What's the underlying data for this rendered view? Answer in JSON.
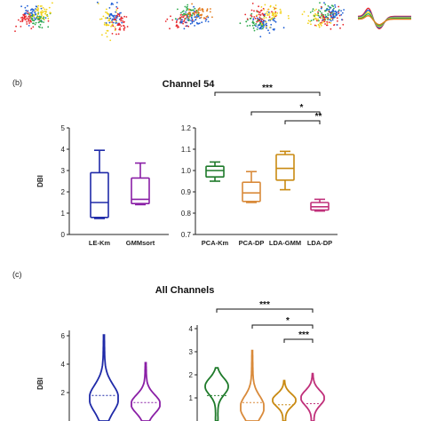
{
  "panels": {
    "b": {
      "label": "(b)",
      "title": "Channel 54"
    },
    "c": {
      "label": "(c)",
      "title": "All Channels"
    }
  },
  "chart_data": [
    {
      "type": "scatter",
      "panel": "a",
      "note_colors": [
        "#e8262b",
        "#1f5fd6",
        "#f2d21a",
        "#2aa84a",
        "#e37a1c"
      ],
      "clusters": 5
    },
    {
      "type": "box",
      "panel": "b-left",
      "ylabel": "DBI",
      "ylim": [
        0,
        5
      ],
      "yticks": [
        "0",
        "1",
        "2",
        "3",
        "4",
        "5"
      ],
      "categories": [
        "LE-Km",
        "GMMsort"
      ],
      "colors": [
        "#1f2aa8",
        "#8a1fa6"
      ],
      "boxes": [
        {
          "min": 0.75,
          "q1": 0.8,
          "median": 1.5,
          "q3": 2.9,
          "max": 3.95
        },
        {
          "min": 1.4,
          "q1": 1.45,
          "median": 1.65,
          "q3": 2.65,
          "max": 3.35
        }
      ]
    },
    {
      "type": "box",
      "panel": "b-right",
      "ylim": [
        0.7,
        1.2
      ],
      "yticks": [
        "0.7",
        "0.8",
        "0.9",
        "1.0",
        "1.1",
        "1.2"
      ],
      "categories": [
        "PCA-Km",
        "PCA-DP",
        "LDA-GMM",
        "LDA-DP"
      ],
      "colors": [
        "#1e7a2a",
        "#d98a3a",
        "#c98a12",
        "#c0307a"
      ],
      "boxes": [
        {
          "min": 0.95,
          "q1": 0.97,
          "median": 1.0,
          "q3": 1.02,
          "max": 1.04
        },
        {
          "min": 0.85,
          "q1": 0.855,
          "median": 0.895,
          "q3": 0.945,
          "max": 0.995
        },
        {
          "min": 0.91,
          "q1": 0.955,
          "median": 1.01,
          "q3": 1.075,
          "max": 1.09
        },
        {
          "min": 0.81,
          "q1": 0.815,
          "median": 0.83,
          "q3": 0.85,
          "max": 0.865
        }
      ],
      "significance": [
        {
          "from": "PCA-Km",
          "to": "LDA-DP",
          "label": "***"
        },
        {
          "from": "PCA-DP",
          "to": "LDA-DP",
          "label": "*"
        },
        {
          "from": "LDA-GMM",
          "to": "LDA-DP",
          "label": "**"
        }
      ]
    },
    {
      "type": "violin",
      "panel": "c-left",
      "ylabel": "DBI",
      "ylim": [
        0,
        7
      ],
      "yticks": [
        "2",
        "4",
        "6"
      ],
      "colors": [
        "#1f2aa8",
        "#8a1fa6"
      ],
      "violins": [
        {
          "max": 6.05,
          "median": 1.8,
          "mode": 1.6
        },
        {
          "max": 4.1,
          "median": 1.3,
          "mode": 1.2
        }
      ]
    },
    {
      "type": "violin",
      "panel": "c-right",
      "ylim": [
        0,
        4
      ],
      "yticks": [
        "1",
        "2",
        "3",
        "4"
      ],
      "colors": [
        "#1e7a2a",
        "#d98a3a",
        "#c98a12",
        "#c0307a"
      ],
      "violins": [
        {
          "max": 2.3,
          "median": 1.1,
          "mode": 1.5
        },
        {
          "max": 3.05,
          "median": 0.8,
          "mode": 0.6
        },
        {
          "max": 1.75,
          "median": 0.7,
          "mode": 0.9
        },
        {
          "max": 2.05,
          "median": 0.75,
          "mode": 1.0
        }
      ],
      "significance": [
        {
          "from": 0,
          "to": 3,
          "label": "***"
        },
        {
          "from": 1,
          "to": 3,
          "label": "*"
        },
        {
          "from": 2,
          "to": 3,
          "label": "***"
        }
      ]
    }
  ]
}
